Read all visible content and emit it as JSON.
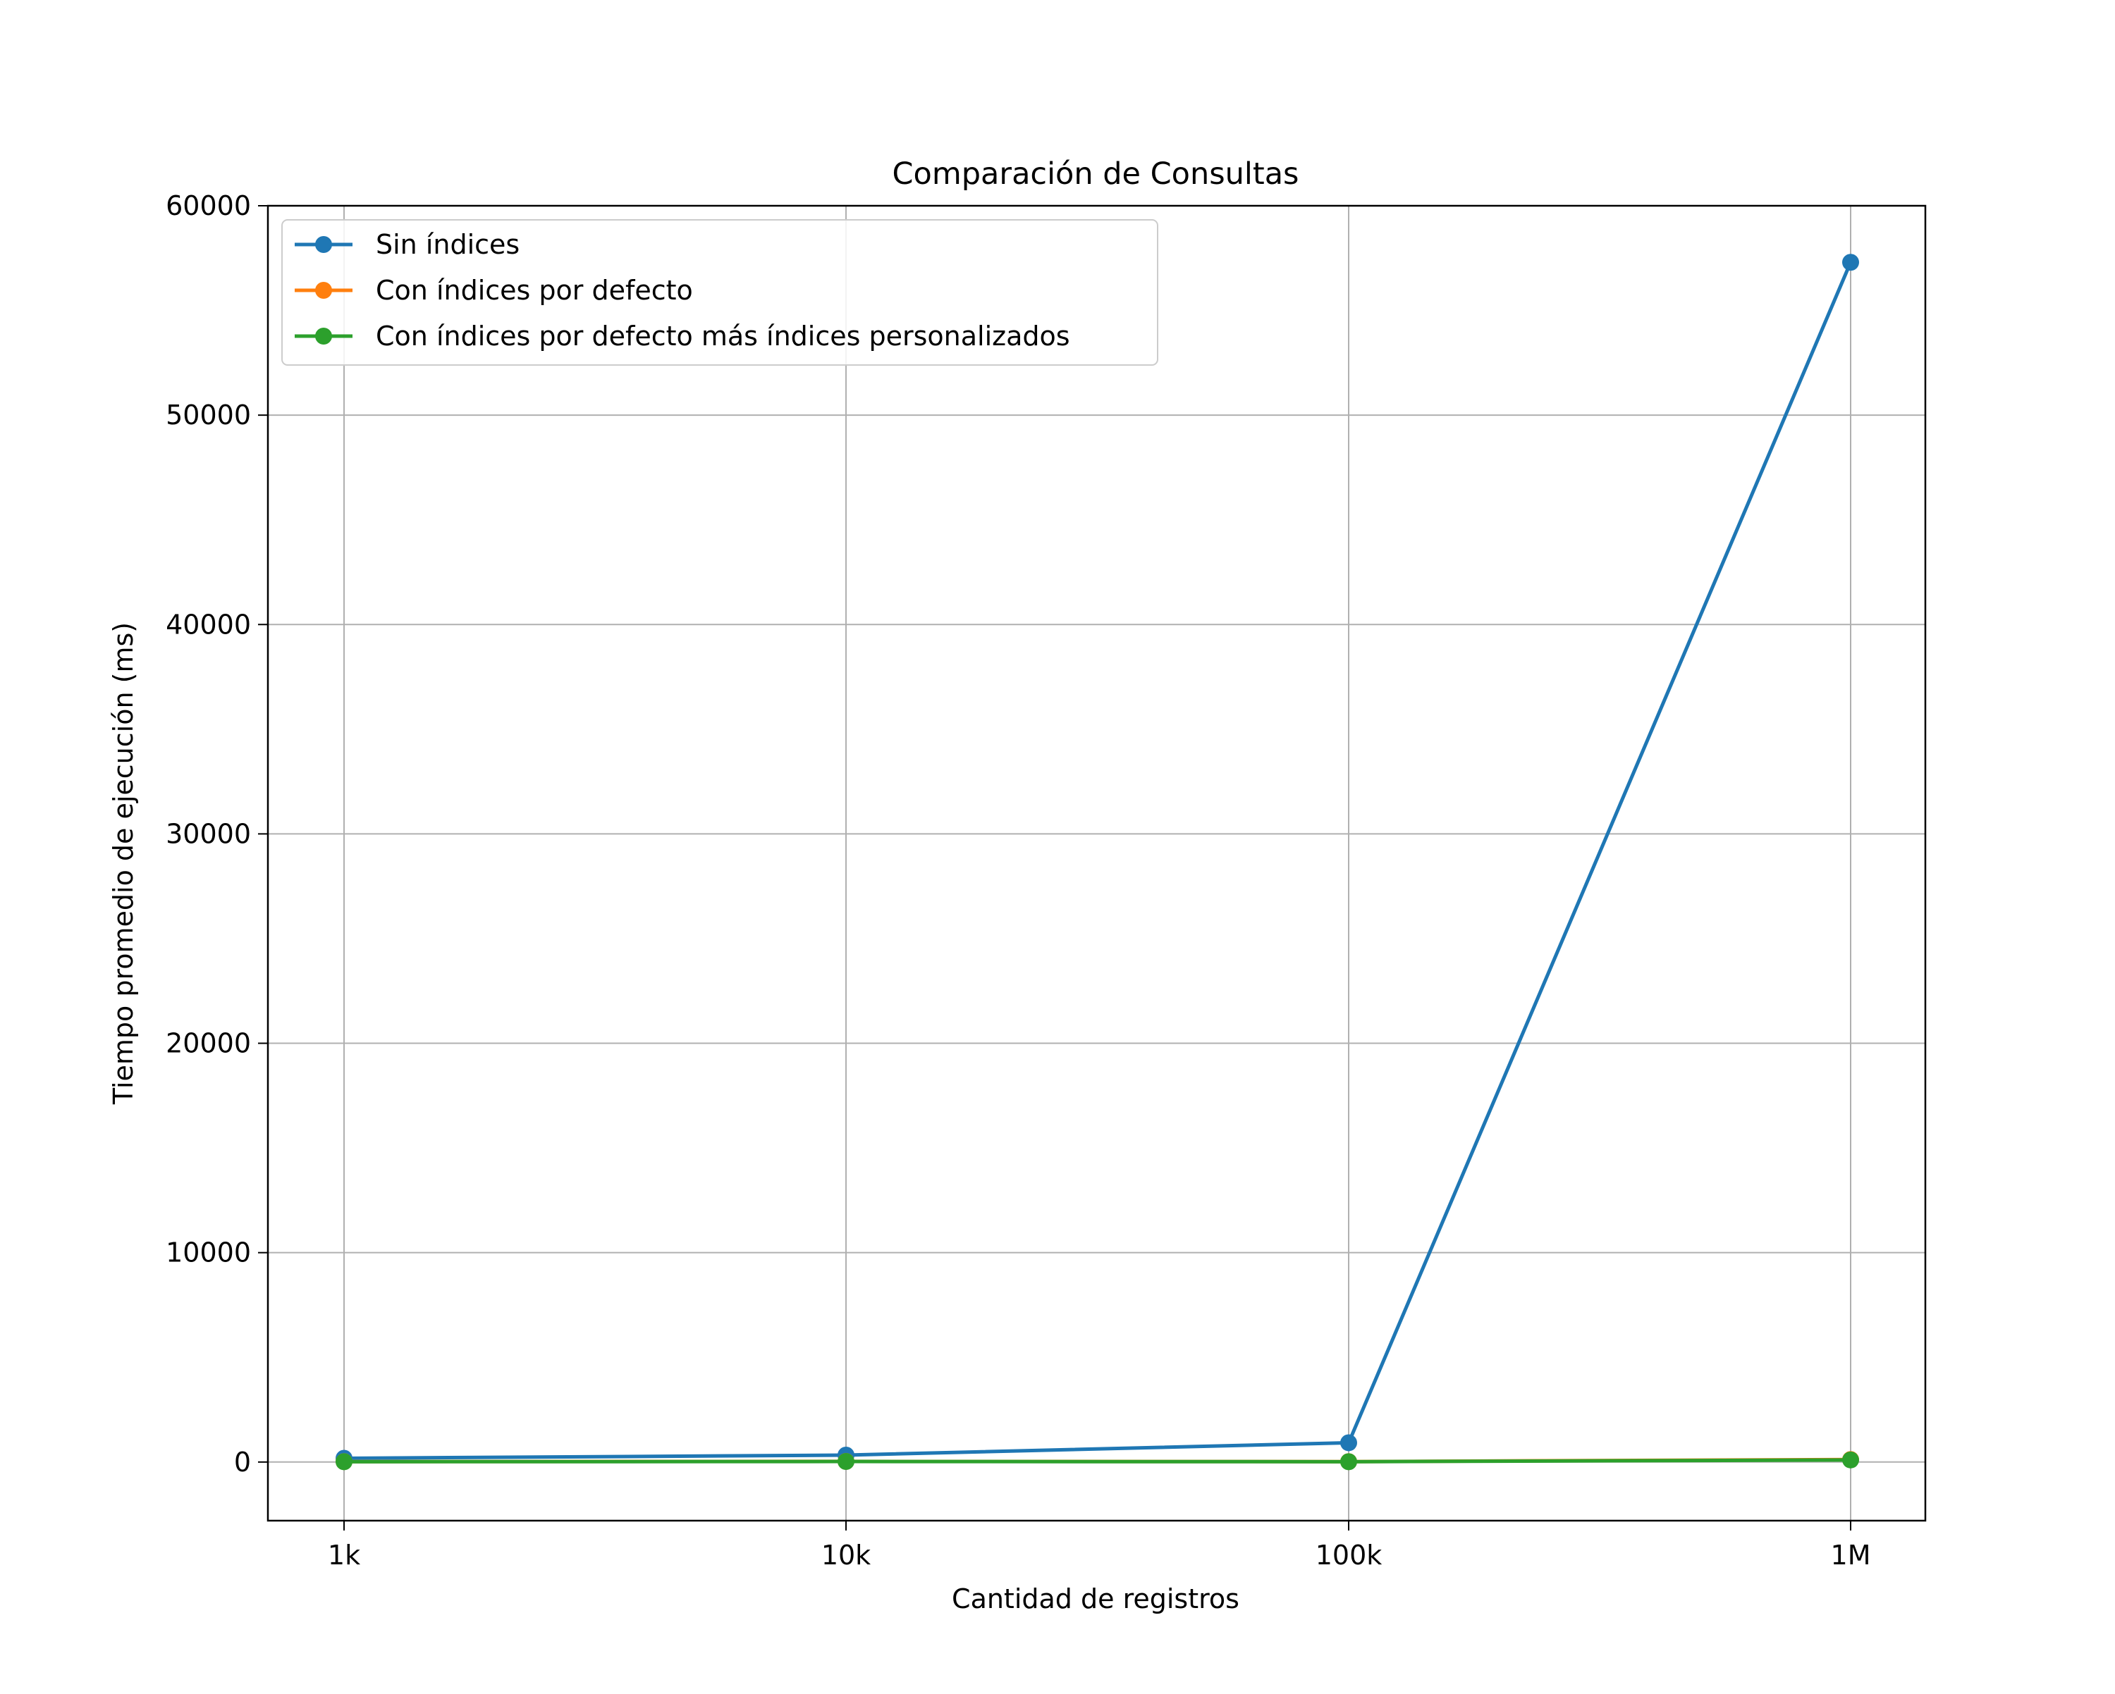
{
  "chart_data": {
    "type": "line",
    "title": "Comparación de Consultas",
    "xlabel": "Cantidad de registros",
    "ylabel": "Tiempo promedio de ejecución (ms)",
    "categories": [
      "1k",
      "10k",
      "100k",
      "1M"
    ],
    "ylim": [
      -2800,
      60000
    ],
    "yticks": [
      0,
      10000,
      20000,
      30000,
      40000,
      50000,
      60000
    ],
    "grid": true,
    "legend_position": "top-left",
    "series": [
      {
        "name": "Sin índices",
        "color": "#1f77b4",
        "values": [
          180,
          330,
          920,
          57300
        ]
      },
      {
        "name": "Con índices por defecto",
        "color": "#ff7f0e",
        "values": [
          20,
          30,
          20,
          120
        ]
      },
      {
        "name": "Con índices por defecto más índices personalizados",
        "color": "#2ca02c",
        "values": [
          15,
          25,
          15,
          100
        ]
      }
    ]
  }
}
